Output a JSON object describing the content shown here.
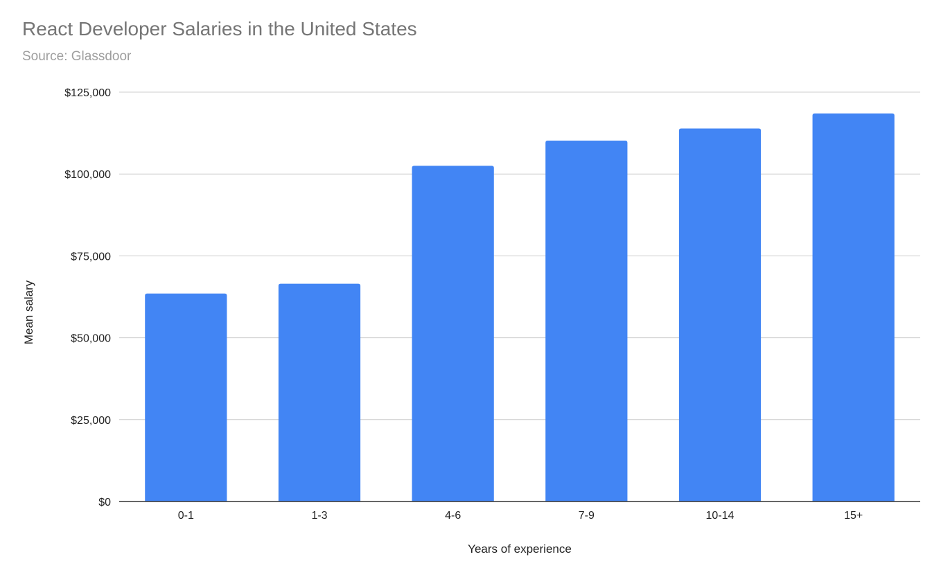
{
  "chart_data": {
    "type": "bar",
    "title": "React Developer Salaries in the United States",
    "subtitle": "Source: Glassdoor",
    "xlabel": "Years of experience",
    "ylabel": "Mean salary",
    "categories": [
      "0-1",
      "1-3",
      "4-6",
      "7-9",
      "10-14",
      "15+"
    ],
    "values": [
      63500,
      66500,
      102500,
      110200,
      113900,
      118500
    ],
    "ylim": [
      0,
      125000
    ],
    "yticks": [
      0,
      25000,
      50000,
      75000,
      100000,
      125000
    ],
    "ytick_labels": [
      "$0",
      "$25,000",
      "$50,000",
      "$75,000",
      "$100,000",
      "$125,000"
    ],
    "grid": true,
    "legend": "none",
    "colors": {
      "bar": "#4285f4",
      "grid": "#cccccc",
      "baseline": "#333333"
    }
  }
}
